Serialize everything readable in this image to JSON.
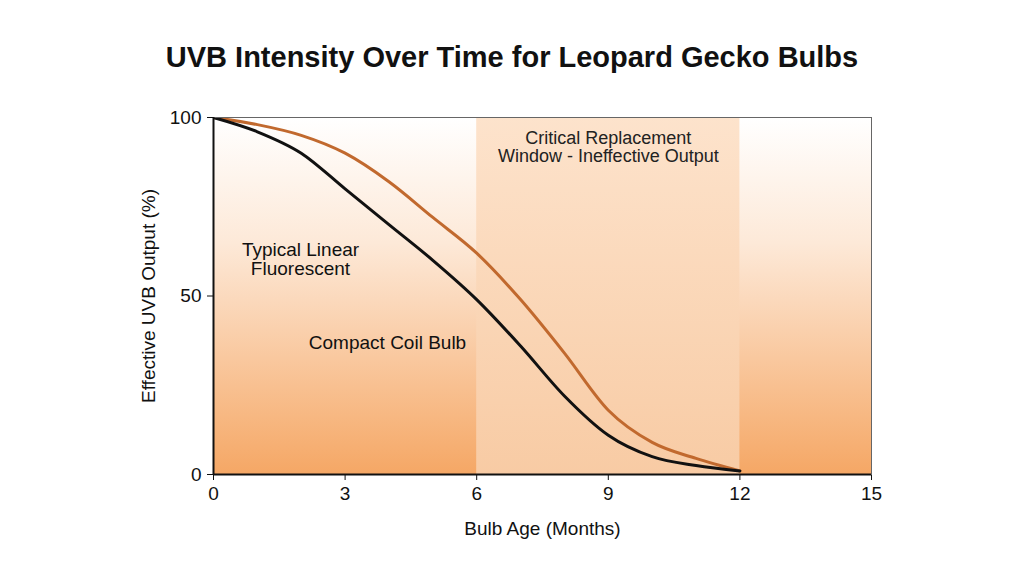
{
  "chart_data": {
    "type": "line",
    "title": "UVB Intensity Over Time for Leopard Gecko Bulbs",
    "x_label": "Bulb Age (Months)",
    "y_label": "Effective UVB Output (%)",
    "x": [
      0,
      1,
      2,
      3,
      4,
      5,
      6,
      7,
      8,
      9,
      10,
      11,
      12
    ],
    "series": [
      {
        "name": "Typical Linear Fluorescent",
        "color": "#c1692e",
        "values": [
          100,
          98,
          95,
          90,
          82,
          72,
          62,
          49,
          34,
          18,
          9,
          4.5,
          1
        ]
      },
      {
        "name": "Compact Coil Bulb",
        "color": "#111111",
        "values": [
          100,
          96,
          90,
          80,
          70,
          60,
          49,
          36,
          22,
          11,
          5,
          2.5,
          1
        ]
      }
    ],
    "xlim": [
      0,
      15
    ],
    "xticks": [
      0,
      3,
      6,
      9,
      12,
      15
    ],
    "ylim": [
      0,
      100
    ],
    "yticks": [
      0,
      50,
      100
    ],
    "grid": false,
    "annotations": [
      {
        "text": "Critical Replacement Window - Ineffective Output",
        "x_start": 6,
        "x_end": 12
      }
    ]
  }
}
